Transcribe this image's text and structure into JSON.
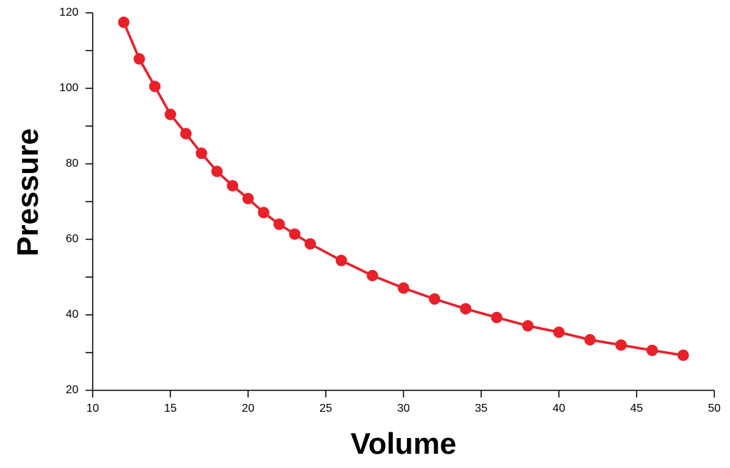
{
  "chart_data": {
    "type": "line",
    "x_label": "Volume",
    "y_label": "Pressure",
    "x": [
      12,
      13,
      14,
      15,
      16,
      17,
      18,
      19,
      20,
      21,
      22,
      23,
      24,
      26,
      28,
      30,
      32,
      34,
      36,
      38,
      40,
      42,
      44,
      46,
      48
    ],
    "series": [
      {
        "color": "#e8202a",
        "values": [
          117.5,
          107.8,
          100.5,
          93.1,
          88,
          82.8,
          78,
          74.2,
          70.8,
          67.1,
          64,
          61.4,
          58.8,
          54.4,
          50.4,
          47.1,
          44.2,
          41.6,
          39.3,
          37.1,
          35.4,
          33.4,
          32,
          30.6,
          29.3
        ]
      }
    ],
    "xlim": [
      10,
      50
    ],
    "xticks": [
      10,
      15,
      20,
      25,
      30,
      35,
      40,
      45,
      50
    ],
    "ylim": [
      20,
      120
    ],
    "yticks": [
      20,
      40,
      60,
      80,
      100,
      120
    ],
    "yminorticks": [
      30,
      50,
      70,
      90,
      110
    ],
    "grid": false
  }
}
